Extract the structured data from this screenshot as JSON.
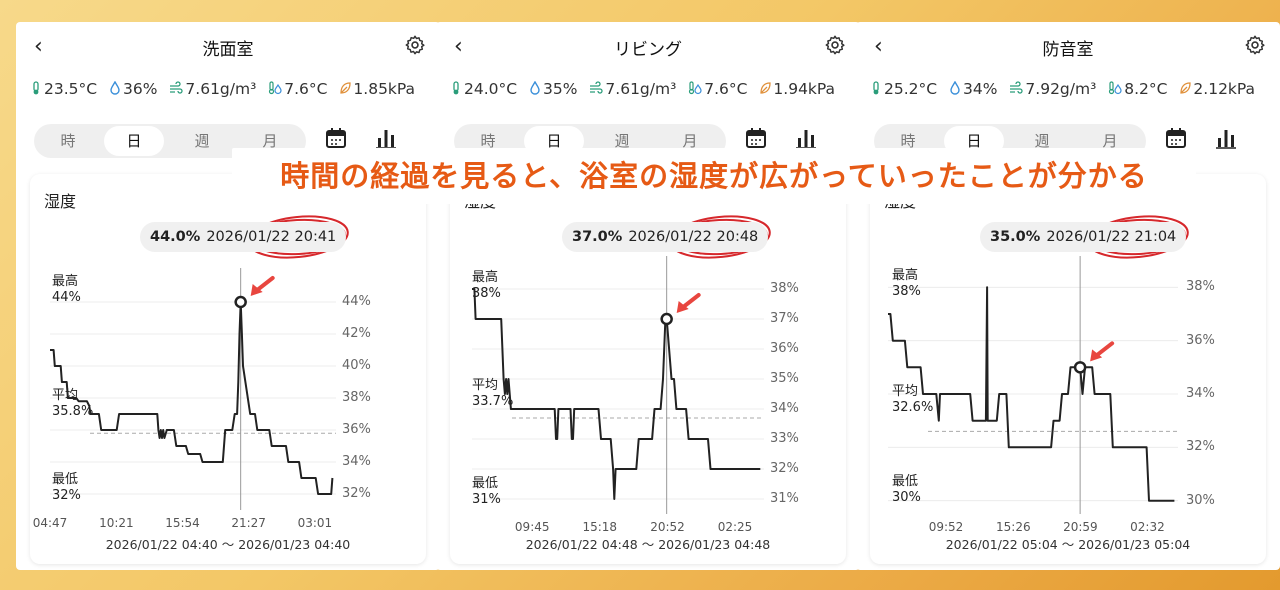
{
  "banner": "時間の経過を見ると、浴室の湿度が広がっていったことが分かる",
  "segment_labels": [
    "時",
    "日",
    "週",
    "月"
  ],
  "card_title": "湿度",
  "max_label": "最高",
  "avg_label": "平均",
  "min_label": "最低",
  "colors": {
    "accent_annotation": "#d6282c",
    "arrow": "#e8463f",
    "line": "#222222",
    "banner_text": "#e65a15"
  },
  "panels": [
    {
      "title": "洗面室",
      "stats": [
        "23.5°C",
        "36%",
        "7.61g/m³",
        "7.6°C",
        "1.85kPa"
      ],
      "tooltip": {
        "value": "44.0%",
        "time": "2026/01/22 20:41"
      },
      "max": "44%",
      "avg": "35.8%",
      "min": "32%",
      "range": "2026/01/22 04:40 〜 2026/01/23 04:40",
      "chart_data": {
        "type": "line",
        "title": "湿度",
        "ylim": [
          31,
          45
        ],
        "yticks": [
          "44%",
          "42%",
          "40%",
          "38%",
          "36%",
          "34%",
          "32%"
        ],
        "ytick_values": [
          44,
          42,
          40,
          38,
          36,
          34,
          32
        ],
        "xticks": [
          "04:47",
          "10:21",
          "15:54",
          "21:27",
          "03:01"
        ],
        "xtick_values": [
          0,
          5.57,
          11.12,
          16.67,
          22.23
        ],
        "xlim": [
          0,
          24
        ],
        "avg": 35.8,
        "marker": {
          "x": 16.0,
          "y": 44.0
        },
        "series": [
          {
            "x": [
              0,
              0.3,
              0.4,
              0.9,
              1.0,
              1.4,
              1.5,
              2.2,
              2.4,
              3.1,
              3.3,
              3.4,
              4.1,
              4.3,
              5.6,
              5.8,
              9.0,
              9.1,
              9.2,
              9.3,
              9.4,
              9.5,
              9.6,
              9.8,
              10.4,
              10.6,
              11.4,
              11.6,
              12.6,
              12.8,
              14.5,
              14.7,
              15.3,
              15.5,
              15.7,
              15.8,
              15.9,
              16.0,
              16.1,
              16.2,
              16.4,
              16.6,
              16.8,
              17.2,
              17.4,
              18.4,
              18.6,
              19.8,
              20.0,
              20.9,
              21.1,
              22.3,
              22.5,
              23.5,
              23.6,
              23.7
            ],
            "y": [
              41,
              41,
              40,
              40,
              39,
              39,
              38,
              38,
              37.8,
              37.8,
              37.5,
              37,
              37,
              36,
              36,
              37,
              37,
              36,
              35.5,
              36,
              35.5,
              36,
              35.5,
              36,
              36,
              35,
              35,
              34.5,
              34.5,
              34,
              34,
              36,
              36,
              37,
              37,
              39,
              42,
              44,
              42,
              40,
              39,
              38,
              37,
              37,
              36,
              36,
              35,
              35,
              34,
              34,
              33,
              33,
              32,
              32,
              32,
              33
            ]
          }
        ]
      }
    },
    {
      "title": "リビング",
      "stats": [
        "24.0°C",
        "35%",
        "7.61g/m³",
        "7.6°C",
        "1.94kPa"
      ],
      "tooltip": {
        "value": "37.0%",
        "time": "2026/01/22 20:48"
      },
      "max": "38%",
      "avg": "33.7%",
      "min": "31%",
      "range": "2026/01/22 04:48 〜 2026/01/23 04:48",
      "chart_data": {
        "type": "line",
        "title": "湿度",
        "ylim": [
          30.5,
          38.5
        ],
        "yticks": [
          "38%",
          "37%",
          "36%",
          "35%",
          "34%",
          "33%",
          "32%",
          "31%"
        ],
        "ytick_values": [
          38,
          37,
          36,
          35,
          34,
          33,
          32,
          31
        ],
        "xticks": [
          "09:45",
          "15:18",
          "20:52",
          "02:25"
        ],
        "xtick_values": [
          4.95,
          10.5,
          16.07,
          21.62
        ],
        "xlim": [
          0,
          24
        ],
        "avg": 33.7,
        "marker": {
          "x": 16.0,
          "y": 37.0
        },
        "series": [
          {
            "x": [
              0,
              0.2,
              0.3,
              2.4,
              2.6,
              2.7,
              2.8,
              2.9,
              3.0,
              3.2,
              6.8,
              6.9,
              7.0,
              7.1,
              7.2,
              8.1,
              8.2,
              8.3,
              8.4,
              8.6,
              10.4,
              10.6,
              11.4,
              11.6,
              11.7,
              11.8,
              11.9,
              13.5,
              13.7,
              14.8,
              15.0,
              15.5,
              15.7,
              15.8,
              15.9,
              16.0,
              16.2,
              16.4,
              16.6,
              16.8,
              17.6,
              17.8,
              19.4,
              19.6,
              23.7
            ],
            "y": [
              38,
              38,
              37,
              37,
              35,
              34.5,
              35,
              34.5,
              35,
              34,
              34,
              33,
              33,
              34,
              34,
              34,
              33,
              33,
              34,
              34,
              34,
              33,
              33,
              32,
              31,
              32,
              32,
              32,
              33,
              33,
              34,
              34,
              35,
              36,
              37,
              37,
              36,
              35,
              35,
              34,
              34,
              33,
              33,
              32,
              32
            ]
          }
        ]
      }
    },
    {
      "title": "防音室",
      "stats": [
        "25.2°C",
        "34%",
        "7.92g/m³",
        "8.2°C",
        "2.12kPa"
      ],
      "tooltip": {
        "value": "35.0%",
        "time": "2026/01/22 21:04"
      },
      "max": "38%",
      "avg": "32.6%",
      "min": "30%",
      "range": "2026/01/22 05:04 〜 2026/01/23 05:04",
      "chart_data": {
        "type": "line",
        "title": "湿度",
        "ylim": [
          29.5,
          38.5
        ],
        "yticks": [
          "38%",
          "36%",
          "34%",
          "32%",
          "30%"
        ],
        "ytick_values": [
          38,
          36,
          34,
          32,
          30
        ],
        "xticks": [
          "09:52",
          "15:26",
          "20:59",
          "02:32"
        ],
        "xtick_values": [
          4.8,
          10.37,
          15.92,
          21.47
        ],
        "xlim": [
          0,
          24
        ],
        "avg": 32.6,
        "marker": {
          "x": 15.9,
          "y": 35.0
        },
        "series": [
          {
            "x": [
              0,
              0.2,
              0.4,
              1.4,
              1.6,
              2.7,
              2.9,
              4.0,
              4.2,
              4.3,
              4.4,
              6.8,
              7.0,
              8.1,
              8.2,
              8.25,
              8.3,
              9.0,
              9.2,
              9.8,
              10.0,
              13.5,
              13.7,
              14.2,
              14.4,
              14.9,
              15.1,
              15.7,
              15.9,
              16.1,
              16.3,
              16.9,
              17.1,
              18.4,
              18.6,
              21.4,
              21.6,
              23.7
            ],
            "y": [
              37,
              37,
              36,
              36,
              35,
              35,
              34,
              34,
              33,
              34,
              34,
              34,
              33,
              33,
              38,
              33,
              33,
              33,
              34,
              34,
              32,
              32,
              33,
              33,
              34,
              34,
              35,
              35,
              35,
              34,
              35,
              35,
              34,
              34,
              32,
              32,
              30,
              30
            ]
          }
        ]
      }
    }
  ]
}
